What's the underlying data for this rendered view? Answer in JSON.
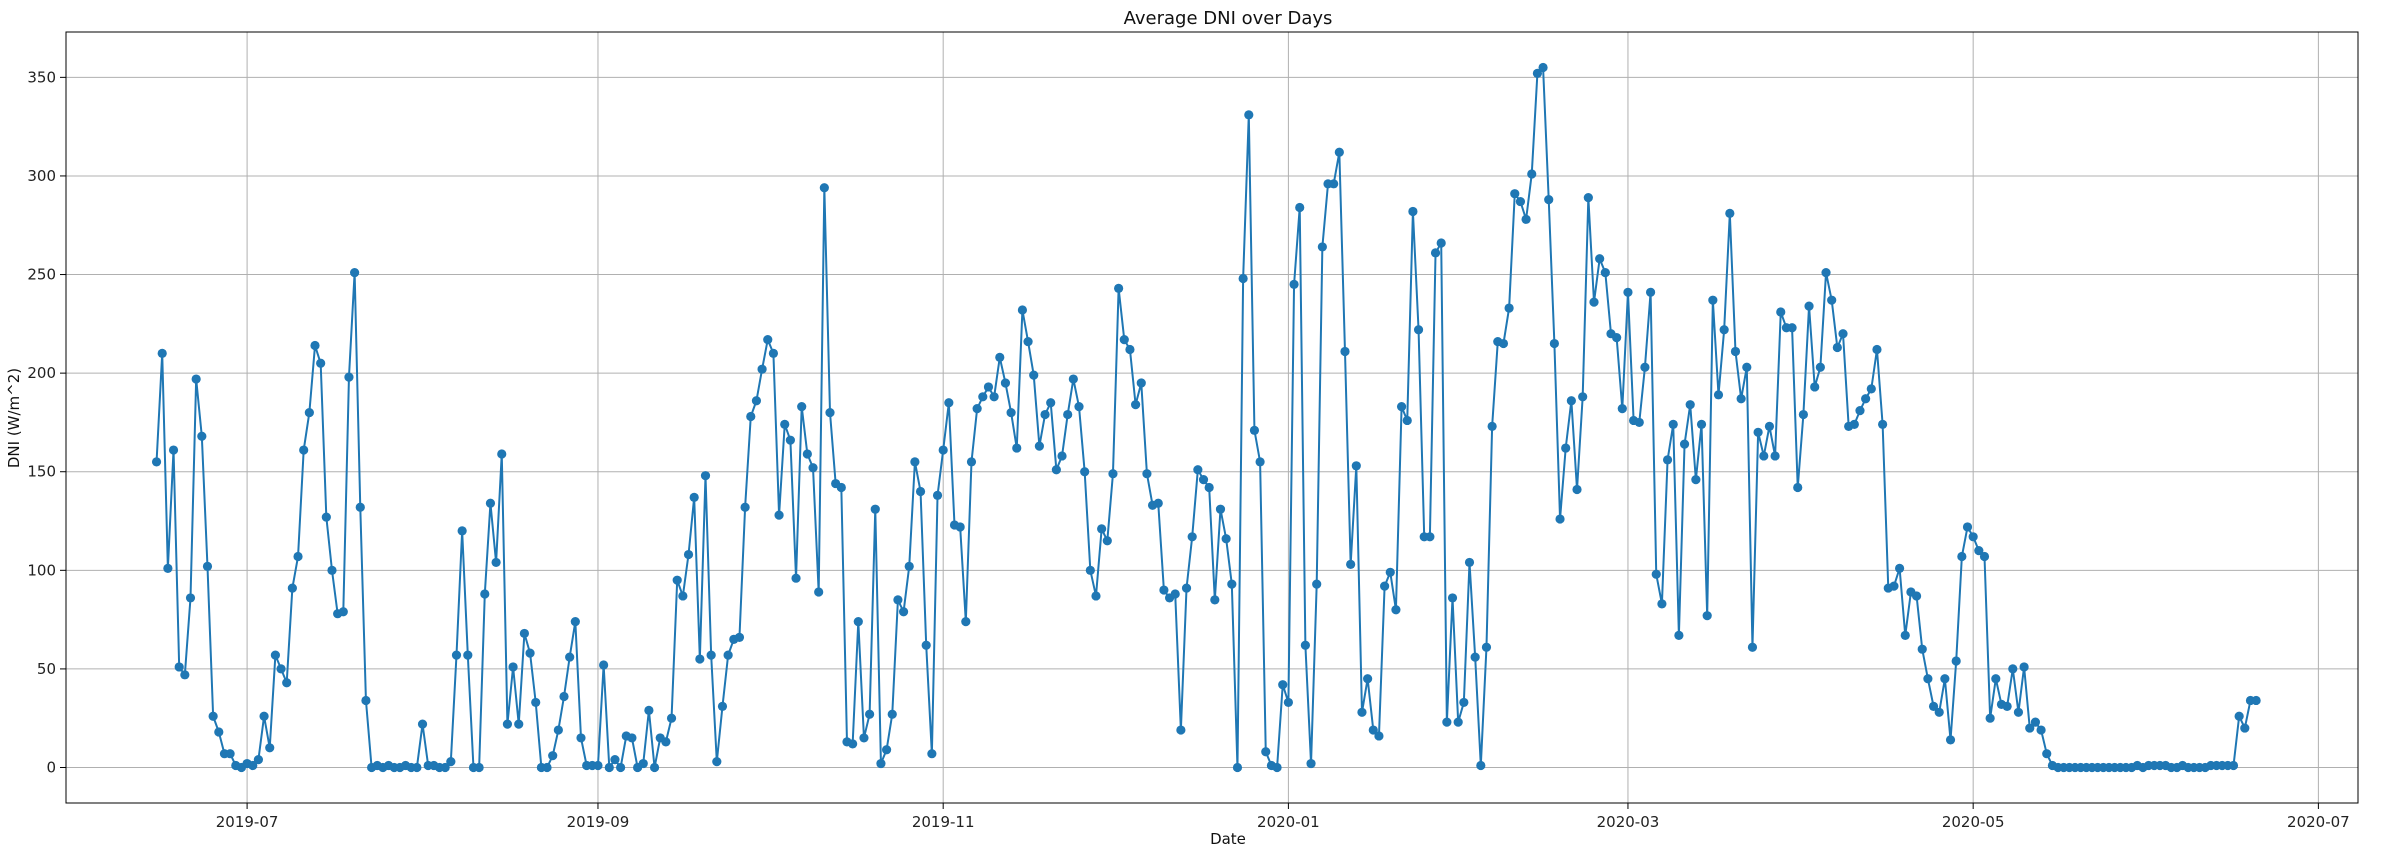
{
  "chart_data": {
    "type": "line",
    "title": "Average DNI over Days",
    "xlabel": "Date",
    "ylabel": "DNI (W/m^2)",
    "grid": true,
    "marker": "circle",
    "color": "#1f77b4",
    "x_start": "2019-06-15",
    "x_step_days": 1,
    "xlim": [
      "2019-05-30",
      "2020-07-08"
    ],
    "ylim": [
      -18,
      373
    ],
    "xticks": [
      {
        "date": "2019-07-01",
        "label": "2019-07"
      },
      {
        "date": "2019-09-01",
        "label": "2019-09"
      },
      {
        "date": "2019-11-01",
        "label": "2019-11"
      },
      {
        "date": "2020-01-01",
        "label": "2020-01"
      },
      {
        "date": "2020-03-01",
        "label": "2020-03"
      },
      {
        "date": "2020-05-01",
        "label": "2020-05"
      },
      {
        "date": "2020-07-01",
        "label": "2020-07"
      }
    ],
    "yticks": [
      0,
      50,
      100,
      150,
      200,
      250,
      300,
      350
    ],
    "values": [
      155,
      210,
      101,
      161,
      51,
      47,
      86,
      197,
      168,
      102,
      26,
      18,
      7,
      7,
      1,
      0,
      2,
      1,
      4,
      26,
      10,
      57,
      50,
      43,
      91,
      107,
      161,
      180,
      214,
      205,
      127,
      100,
      78,
      79,
      198,
      251,
      132,
      34,
      0,
      1,
      0,
      1,
      0,
      0,
      1,
      0,
      0,
      22,
      1,
      1,
      0,
      0,
      3,
      57,
      120,
      57,
      0,
      0,
      88,
      134,
      104,
      159,
      22,
      51,
      22,
      68,
      58,
      33,
      0,
      0,
      6,
      19,
      36,
      56,
      74,
      15,
      1,
      1,
      1,
      52,
      0,
      4,
      0,
      16,
      15,
      0,
      2,
      29,
      0,
      15,
      13,
      25,
      95,
      87,
      108,
      137,
      55,
      148,
      57,
      3,
      31,
      57,
      65,
      66,
      132,
      178,
      186,
      202,
      217,
      210,
      128,
      174,
      166,
      96,
      183,
      159,
      152,
      89,
      294,
      180,
      144,
      142,
      13,
      12,
      74,
      15,
      27,
      131,
      2,
      9,
      27,
      85,
      79,
      102,
      155,
      140,
      62,
      7,
      138,
      161,
      185,
      123,
      122,
      74,
      155,
      182,
      188,
      193,
      188,
      208,
      195,
      180,
      162,
      232,
      216,
      199,
      163,
      179,
      185,
      151,
      158,
      179,
      197,
      183,
      150,
      100,
      87,
      121,
      115,
      149,
      243,
      217,
      212,
      184,
      195,
      149,
      133,
      134,
      90,
      86,
      88,
      19,
      91,
      117,
      151,
      146,
      142,
      85,
      131,
      116,
      93,
      0,
      248,
      331,
      171,
      155,
      8,
      1,
      0,
      42,
      33,
      245,
      284,
      62,
      2,
      93,
      264,
      296,
      296,
      312,
      211,
      103,
      153,
      28,
      45,
      19,
      16,
      92,
      99,
      80,
      183,
      176,
      282,
      222,
      117,
      117,
      261,
      266,
      23,
      86,
      23,
      33,
      104,
      56,
      1,
      61,
      173,
      216,
      215,
      233,
      291,
      287,
      278,
      301,
      352,
      355,
      288,
      215,
      126,
      162,
      186,
      141,
      188,
      289,
      236,
      258,
      251,
      220,
      218,
      182,
      241,
      176,
      175,
      203,
      241,
      98,
      83,
      156,
      174,
      67,
      164,
      184,
      146,
      174,
      77,
      237,
      189,
      222,
      281,
      211,
      187,
      203,
      61,
      170,
      158,
      173,
      158,
      231,
      223,
      223,
      142,
      179,
      234,
      193,
      203,
      251,
      237,
      213,
      220,
      173,
      174,
      181,
      187,
      192,
      212,
      174,
      91,
      92,
      101,
      67,
      89,
      87,
      60,
      45,
      31,
      28,
      45,
      14,
      54,
      107,
      122,
      117,
      110,
      107,
      25,
      45,
      32,
      31,
      50,
      28,
      51,
      20,
      23,
      19,
      7,
      1,
      0,
      0,
      0,
      0,
      0,
      0,
      0,
      0,
      0,
      0,
      0,
      0,
      0,
      0,
      1,
      0,
      1,
      1,
      1,
      1,
      0,
      0,
      1,
      0,
      0,
      0,
      0,
      1,
      1,
      1,
      1,
      1,
      26,
      20,
      34,
      34
    ]
  }
}
